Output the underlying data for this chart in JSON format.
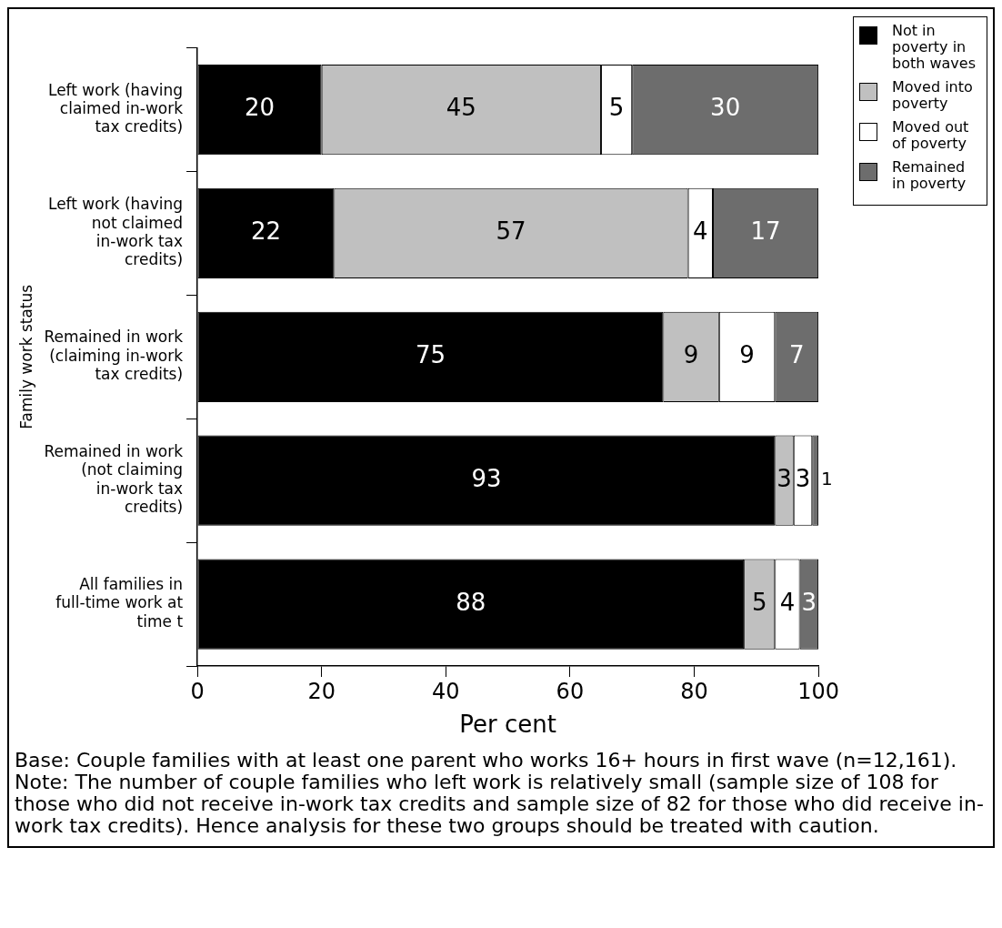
{
  "chart_data": {
    "type": "bar",
    "orientation": "horizontal",
    "stacked": true,
    "categories": [
      "Left work (having claimed in-work tax credits)",
      "Left work (having not claimed in-work tax credits)",
      "Remained in work (claiming in-work tax credits)",
      "Remained in work (not claiming in-work tax credits)",
      "All families in full-time work at time t"
    ],
    "series": [
      {
        "name": "Not in poverty in both waves",
        "color": "#000000",
        "values": [
          20,
          22,
          75,
          93,
          88
        ]
      },
      {
        "name": "Moved into poverty",
        "color": "#c0c0c0",
        "values": [
          45,
          57,
          9,
          3,
          5
        ]
      },
      {
        "name": "Moved out of poverty",
        "color": "#ffffff",
        "values": [
          5,
          4,
          9,
          3,
          4
        ]
      },
      {
        "name": "Remained in poverty",
        "color": "#6d6d6d",
        "values": [
          30,
          17,
          7,
          1,
          3
        ]
      }
    ],
    "xlabel": "Per cent",
    "ylabel": "Family work status",
    "xlim": [
      0,
      100
    ],
    "xticks": [
      0,
      20,
      40,
      60,
      80,
      100
    ],
    "grid": false,
    "legend": "top right",
    "data_labels": true,
    "annotations": [
      "Base: Couple families with at least one parent who works 16+ hours in first wave (n=12,161).",
      "Note: The number of couple families who left work is relatively small (sample size of 108 for those who did not receive in-work tax credits and sample size of 82 for those who did receive in-work tax credits). Hence analysis for these two groups should be treated with caution."
    ]
  }
}
